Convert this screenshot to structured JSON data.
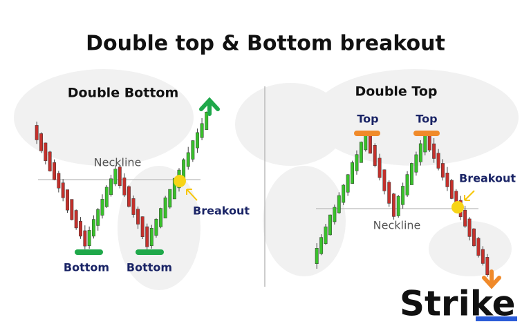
{
  "title": "Double top & Bottom breakout",
  "left_panel": {
    "title": "Double Bottom",
    "neckline": "Neckline",
    "breakout": "Breakout",
    "bottoms": [
      "Bottom",
      "Bottom"
    ]
  },
  "right_panel": {
    "title": "Double Top",
    "tops": [
      "Top",
      "Top"
    ],
    "breakout": "Breakout",
    "neckline": "Neckline"
  },
  "logo": "Strike"
}
